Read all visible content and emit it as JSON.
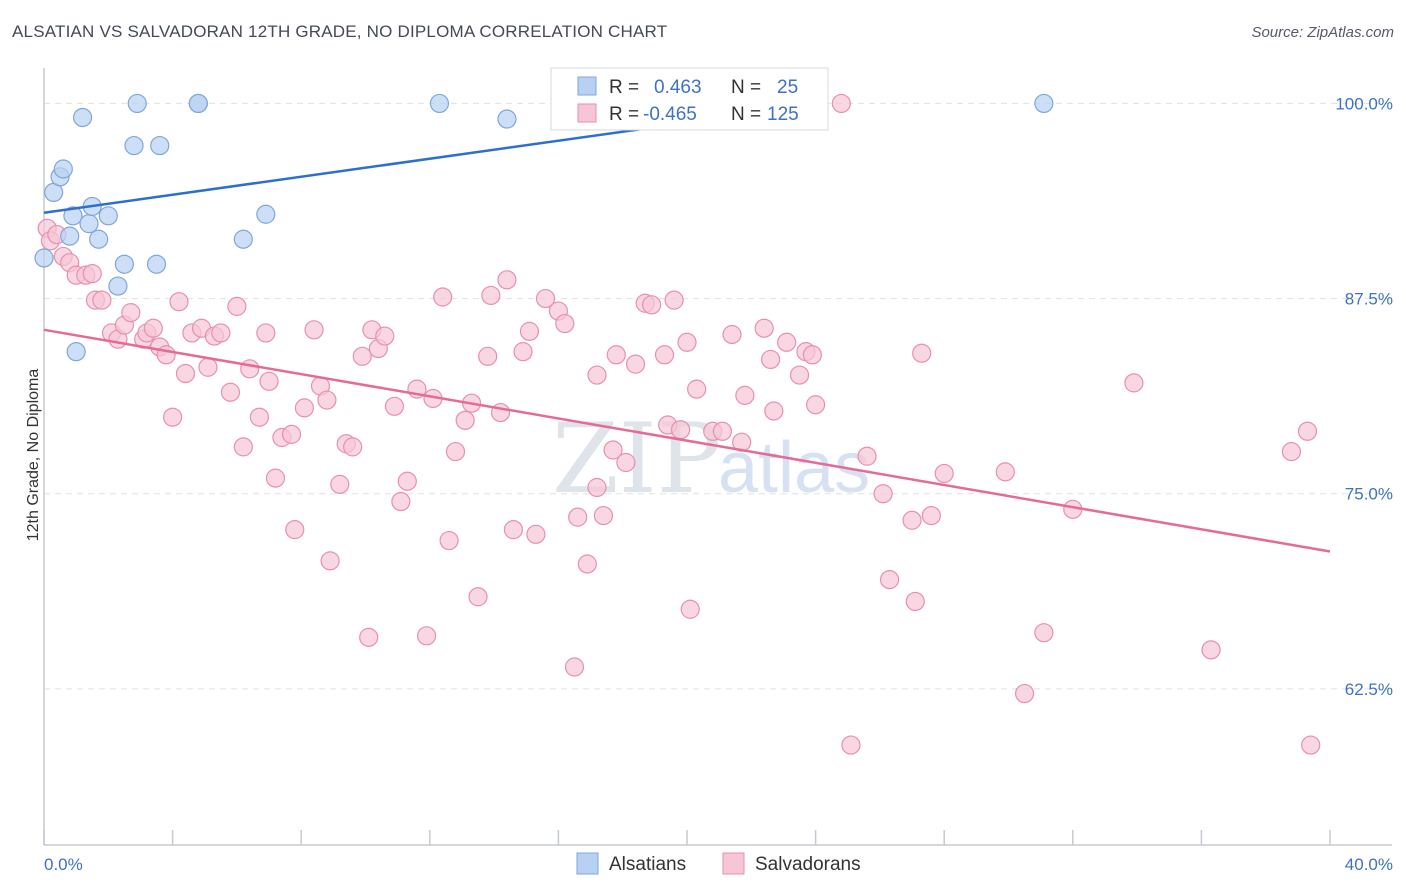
{
  "header": {
    "title": "ALSATIAN VS SALVADORAN 12TH GRADE, NO DIPLOMA CORRELATION CHART",
    "source": "Source: ZipAtlas.com"
  },
  "legend_box": {
    "rows": [
      {
        "r_label": "R =",
        "r_value": "0.463",
        "n_label": "N =",
        "n_value": "25"
      },
      {
        "r_label": "R =",
        "r_value": "-0.465",
        "n_label": "N =",
        "n_value": "125"
      }
    ]
  },
  "bottom_legend": [
    "Alsatians",
    "Salvadorans"
  ],
  "watermark": {
    "zip": "ZIP",
    "atlas": "atlas"
  },
  "colors": {
    "blue_fill": "#b8d1f2",
    "blue_stroke": "#7fa6dc",
    "blue_line": "#2d6fd0",
    "pink_fill": "#f7c6d6",
    "pink_stroke": "#e98fae",
    "pink_line": "#e56a94",
    "tick_label": "#3d72c4",
    "grid": "#dde1e6"
  },
  "chart_data": {
    "type": "scatter",
    "title": "ALSATIAN VS SALVADORAN 12TH GRADE, NO DIPLOMA CORRELATION CHART",
    "xlabel": "",
    "ylabel": "12th Grade, No Diploma",
    "xlim": [
      0,
      40
    ],
    "ylim": [
      52.5,
      101.5
    ],
    "x_tick_labels": [
      "0.0%",
      "40.0%"
    ],
    "y_ticks": [
      62.5,
      75.0,
      87.5,
      100.0
    ],
    "y_tick_labels": [
      "62.5%",
      "75.0%",
      "87.5%",
      "100.0%"
    ],
    "grid": "horizontal dashed",
    "legend_position": "bottom-center",
    "series": [
      {
        "name": "Alsatians",
        "r": 0.463,
        "n": 25,
        "trend": {
          "x": [
            0.0,
            24.3
          ],
          "y": [
            93.0,
            100.0
          ]
        },
        "points": [
          [
            0.0,
            90.1
          ],
          [
            0.3,
            94.3
          ],
          [
            0.5,
            95.3
          ],
          [
            0.6,
            95.8
          ],
          [
            0.8,
            91.5
          ],
          [
            0.9,
            92.8
          ],
          [
            1.0,
            84.1
          ],
          [
            1.2,
            99.1
          ],
          [
            1.4,
            92.3
          ],
          [
            1.5,
            93.4
          ],
          [
            1.7,
            91.3
          ],
          [
            2.0,
            92.8
          ],
          [
            2.3,
            88.3
          ],
          [
            2.5,
            89.7
          ],
          [
            2.8,
            97.3
          ],
          [
            2.9,
            100.0
          ],
          [
            3.5,
            89.7
          ],
          [
            3.6,
            97.3
          ],
          [
            4.8,
            100.0
          ],
          [
            6.2,
            91.3
          ],
          [
            6.9,
            92.9
          ],
          [
            12.3,
            100.0
          ],
          [
            14.4,
            99.0
          ],
          [
            31.1,
            100.0
          ],
          [
            4.8,
            100.0
          ]
        ]
      },
      {
        "name": "Salvadorans",
        "r": -0.465,
        "n": 125,
        "trend": {
          "x": [
            0.0,
            40.0
          ],
          "y": [
            85.5,
            71.3
          ]
        },
        "points": [
          [
            0.1,
            92.0
          ],
          [
            0.2,
            91.2
          ],
          [
            0.4,
            91.6
          ],
          [
            0.6,
            90.2
          ],
          [
            0.8,
            89.8
          ],
          [
            1.0,
            89.0
          ],
          [
            1.3,
            89.0
          ],
          [
            1.5,
            89.1
          ],
          [
            1.6,
            87.4
          ],
          [
            1.8,
            87.4
          ],
          [
            2.1,
            85.3
          ],
          [
            2.3,
            84.9
          ],
          [
            2.5,
            85.8
          ],
          [
            2.7,
            86.6
          ],
          [
            3.1,
            84.9
          ],
          [
            3.2,
            85.3
          ],
          [
            3.4,
            85.6
          ],
          [
            3.6,
            84.4
          ],
          [
            3.8,
            83.9
          ],
          [
            4.0,
            79.9
          ],
          [
            4.2,
            87.3
          ],
          [
            4.4,
            82.7
          ],
          [
            4.6,
            85.3
          ],
          [
            4.9,
            85.6
          ],
          [
            5.1,
            83.1
          ],
          [
            5.3,
            85.1
          ],
          [
            5.5,
            85.3
          ],
          [
            5.8,
            81.5
          ],
          [
            6.0,
            87.0
          ],
          [
            6.2,
            78.0
          ],
          [
            6.4,
            83.0
          ],
          [
            6.7,
            79.9
          ],
          [
            6.9,
            85.3
          ],
          [
            7.0,
            82.2
          ],
          [
            7.2,
            76.0
          ],
          [
            7.4,
            78.6
          ],
          [
            7.7,
            78.8
          ],
          [
            7.8,
            72.7
          ],
          [
            8.1,
            80.5
          ],
          [
            8.4,
            85.5
          ],
          [
            8.6,
            81.9
          ],
          [
            8.8,
            81.0
          ],
          [
            8.9,
            70.7
          ],
          [
            9.2,
            75.6
          ],
          [
            9.4,
            78.2
          ],
          [
            9.6,
            78.0
          ],
          [
            9.9,
            83.8
          ],
          [
            10.1,
            65.8
          ],
          [
            10.2,
            85.5
          ],
          [
            10.4,
            84.3
          ],
          [
            10.6,
            85.1
          ],
          [
            10.9,
            80.6
          ],
          [
            11.1,
            74.5
          ],
          [
            11.3,
            75.8
          ],
          [
            11.6,
            81.7
          ],
          [
            11.9,
            65.9
          ],
          [
            12.1,
            81.1
          ],
          [
            12.4,
            87.6
          ],
          [
            12.6,
            72.0
          ],
          [
            12.8,
            77.7
          ],
          [
            13.1,
            79.7
          ],
          [
            13.3,
            80.8
          ],
          [
            13.5,
            68.4
          ],
          [
            13.8,
            83.8
          ],
          [
            13.9,
            87.7
          ],
          [
            14.2,
            80.2
          ],
          [
            14.4,
            88.7
          ],
          [
            14.6,
            72.7
          ],
          [
            14.9,
            84.1
          ],
          [
            15.1,
            85.4
          ],
          [
            15.3,
            72.4
          ],
          [
            15.6,
            87.5
          ],
          [
            16.0,
            86.7
          ],
          [
            16.2,
            85.9
          ],
          [
            16.5,
            63.9
          ],
          [
            16.6,
            73.5
          ],
          [
            16.9,
            70.5
          ],
          [
            17.2,
            82.6
          ],
          [
            17.2,
            75.4
          ],
          [
            17.4,
            73.6
          ],
          [
            17.7,
            77.8
          ],
          [
            17.8,
            83.9
          ],
          [
            18.1,
            77.0
          ],
          [
            18.4,
            83.3
          ],
          [
            18.7,
            87.2
          ],
          [
            18.9,
            87.1
          ],
          [
            19.3,
            83.9
          ],
          [
            19.4,
            79.4
          ],
          [
            19.6,
            87.4
          ],
          [
            19.8,
            79.1
          ],
          [
            20.0,
            84.7
          ],
          [
            20.1,
            67.6
          ],
          [
            20.3,
            81.7
          ],
          [
            20.8,
            79.0
          ],
          [
            21.1,
            79.0
          ],
          [
            21.4,
            85.2
          ],
          [
            21.7,
            78.3
          ],
          [
            21.8,
            81.3
          ],
          [
            22.4,
            85.6
          ],
          [
            22.6,
            83.6
          ],
          [
            22.7,
            80.3
          ],
          [
            23.1,
            84.7
          ],
          [
            23.5,
            82.6
          ],
          [
            23.7,
            84.1
          ],
          [
            23.9,
            83.9
          ],
          [
            24.0,
            80.7
          ],
          [
            24.8,
            100.0
          ],
          [
            25.1,
            58.9
          ],
          [
            25.6,
            77.4
          ],
          [
            26.1,
            75.0
          ],
          [
            26.3,
            69.5
          ],
          [
            27.0,
            73.3
          ],
          [
            27.1,
            68.1
          ],
          [
            27.3,
            84.0
          ],
          [
            27.6,
            73.6
          ],
          [
            28.0,
            76.3
          ],
          [
            29.9,
            76.4
          ],
          [
            30.5,
            62.2
          ],
          [
            31.1,
            66.1
          ],
          [
            32.0,
            74.0
          ],
          [
            33.9,
            82.1
          ],
          [
            36.3,
            65.0
          ],
          [
            38.8,
            77.7
          ],
          [
            39.3,
            79.0
          ],
          [
            39.4,
            58.9
          ]
        ]
      }
    ]
  }
}
